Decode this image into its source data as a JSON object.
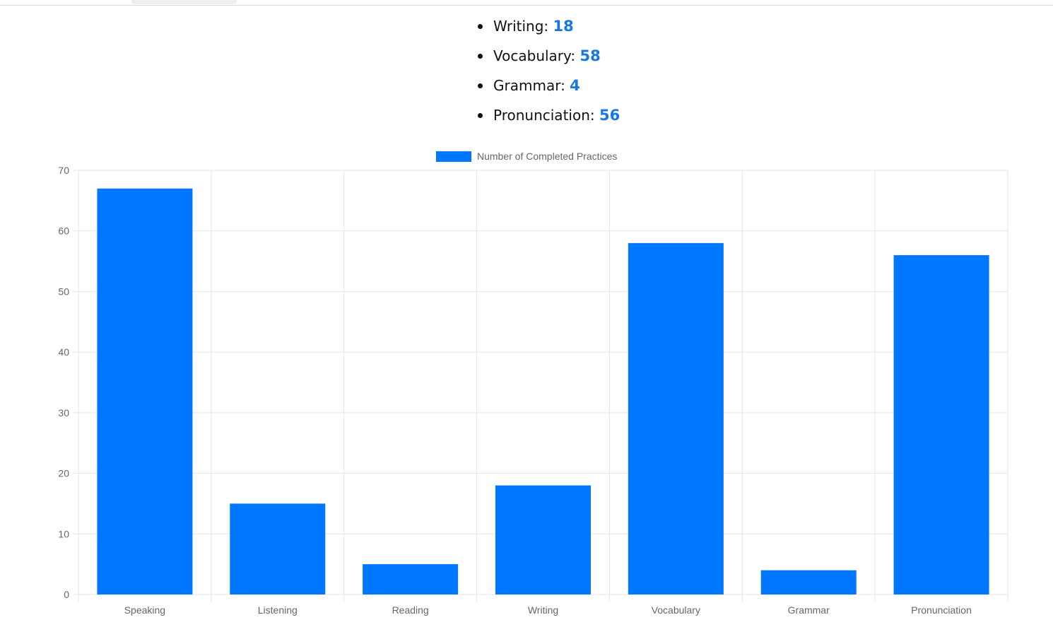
{
  "stats": [
    {
      "label": "Writing:",
      "value": "18"
    },
    {
      "label": "Vocabulary:",
      "value": "58"
    },
    {
      "label": "Grammar:",
      "value": "4"
    },
    {
      "label": "Pronunciation:",
      "value": "56"
    }
  ],
  "colors": {
    "bar": "#0077ff",
    "stat_value": "#1677e0",
    "grid": "#e5e5e5",
    "tick_text": "#666666"
  },
  "chart_data": {
    "type": "bar",
    "categories": [
      "Speaking",
      "Listening",
      "Reading",
      "Writing",
      "Vocabulary",
      "Grammar",
      "Pronunciation"
    ],
    "series": [
      {
        "name": "Number of Completed Practices",
        "values": [
          67,
          15,
          5,
          18,
          58,
          4,
          56
        ]
      }
    ],
    "yticks": [
      "0",
      "10",
      "20",
      "30",
      "40",
      "50",
      "60",
      "70"
    ],
    "ylim": [
      0,
      70
    ],
    "grid": true,
    "legend_position": "top-center"
  }
}
